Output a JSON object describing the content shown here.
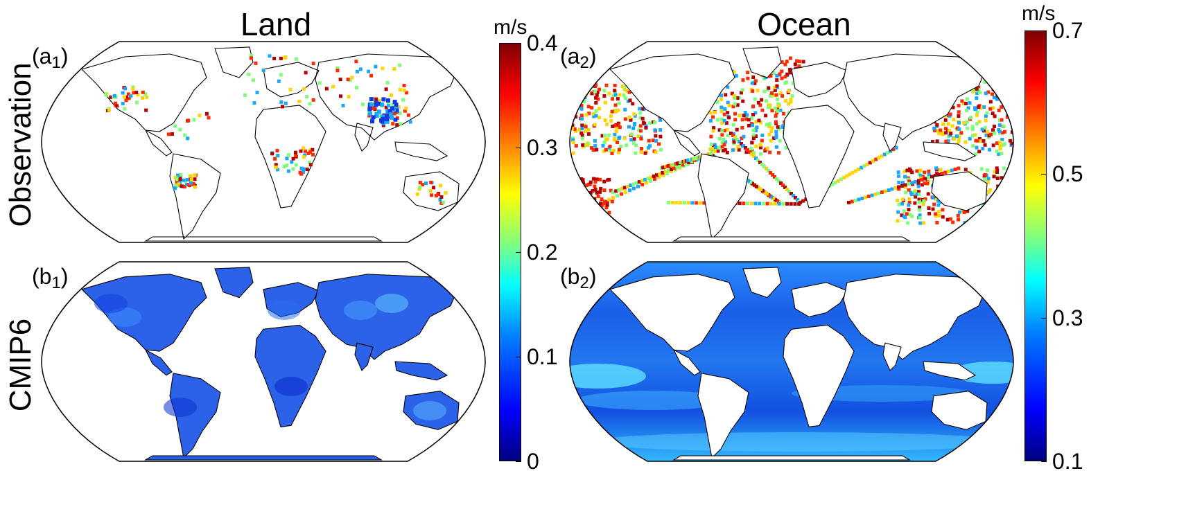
{
  "columns": [
    {
      "title": "Land"
    },
    {
      "title": "Ocean"
    }
  ],
  "rows": [
    {
      "label": "Observation"
    },
    {
      "label": "CMIP6"
    }
  ],
  "panels": {
    "a1": {
      "letter": "a",
      "index": "1"
    },
    "a2": {
      "letter": "a",
      "index": "2"
    },
    "b1": {
      "letter": "b",
      "index": "1"
    },
    "b2": {
      "letter": "b",
      "index": "2"
    }
  },
  "colorbars": {
    "land": {
      "unit": "m/s",
      "ticks": [
        "0.4",
        "0.3",
        "0.2",
        "0.1",
        "0"
      ],
      "range": [
        0,
        0.4
      ],
      "colormap": "jet"
    },
    "ocean": {
      "unit": "m/s",
      "ticks": [
        "0.7",
        "0.5",
        "0.3",
        "0.1"
      ],
      "range": [
        0.1,
        0.7
      ],
      "colormap": "jet"
    }
  },
  "colors": {
    "land_fill_cmip6": "#2b62e8",
    "ocean_fill_cmip6": "#1f66ee",
    "observation_dots": [
      "#ff2a00",
      "#ffd400",
      "#7dff7a",
      "#1aa7ff",
      "#b40000"
    ]
  }
}
